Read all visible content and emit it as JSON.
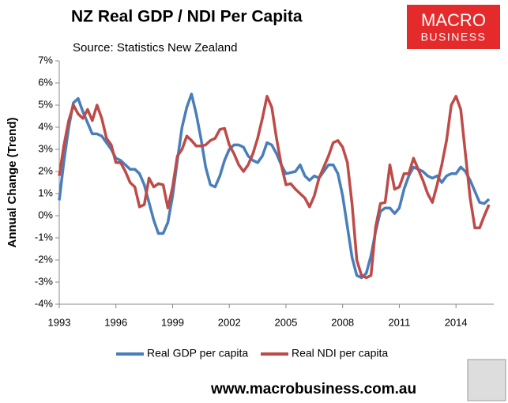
{
  "chart_data": {
    "type": "line",
    "title": "NZ Real GDP / NDI Per Capita",
    "subtitle": "Source: Statistics New Zealand",
    "y_label": "Annual Change (Trend)",
    "logo": {
      "line1": "MACRO",
      "line2": "BUSINESS"
    },
    "footer": "www.macrobusiness.com.au",
    "x": [
      1993,
      1993.25,
      1993.5,
      1993.75,
      1994,
      1994.25,
      1994.5,
      1994.75,
      1995,
      1995.25,
      1995.5,
      1995.75,
      1996,
      1996.25,
      1996.5,
      1996.75,
      1997,
      1997.25,
      1997.5,
      1997.75,
      1998,
      1998.25,
      1998.5,
      1998.75,
      1999,
      1999.25,
      1999.5,
      1999.75,
      2000,
      2000.25,
      2000.5,
      2000.75,
      2001,
      2001.25,
      2001.5,
      2001.75,
      2002,
      2002.25,
      2002.5,
      2002.75,
      2003,
      2003.25,
      2003.5,
      2003.75,
      2004,
      2004.25,
      2004.5,
      2004.75,
      2005,
      2005.25,
      2005.5,
      2005.75,
      2006,
      2006.25,
      2006.5,
      2006.75,
      2007,
      2007.25,
      2007.5,
      2007.75,
      2008,
      2008.25,
      2008.5,
      2008.75,
      2009,
      2009.25,
      2009.5,
      2009.75,
      2010,
      2010.25,
      2010.5,
      2010.75,
      2011,
      2011.25,
      2011.5,
      2011.75,
      2012,
      2012.25,
      2012.5,
      2012.75,
      2013,
      2013.25,
      2013.5,
      2013.75,
      2014,
      2014.25,
      2014.5,
      2014.75,
      2015,
      2015.25,
      2015.5,
      2015.75
    ],
    "series": [
      {
        "name": "Real GDP per capita",
        "color": "#4a7ebb",
        "values": [
          0.7,
          2.5,
          4.0,
          5.1,
          5.3,
          4.7,
          4.2,
          3.7,
          3.7,
          3.6,
          3.3,
          3.0,
          2.6,
          2.5,
          2.3,
          2.1,
          2.1,
          1.9,
          1.4,
          0.6,
          -0.2,
          -0.8,
          -0.8,
          -0.3,
          0.9,
          2.5,
          4.0,
          4.9,
          5.5,
          4.6,
          3.5,
          2.2,
          1.4,
          1.3,
          1.8,
          2.5,
          3.0,
          3.2,
          3.2,
          3.1,
          2.7,
          2.5,
          2.4,
          2.7,
          3.3,
          3.2,
          2.8,
          2.3,
          1.9,
          1.95,
          2.0,
          2.3,
          1.8,
          1.6,
          1.8,
          1.7,
          2.0,
          2.3,
          2.3,
          1.9,
          0.9,
          -0.5,
          -1.9,
          -2.7,
          -2.8,
          -2.6,
          -1.8,
          -0.7,
          0.2,
          0.35,
          0.35,
          0.1,
          0.35,
          1.2,
          1.8,
          2.2,
          2.1,
          2.0,
          1.8,
          1.7,
          1.8,
          1.5,
          1.8,
          1.9,
          1.9,
          2.2,
          2.0,
          1.6,
          1.1,
          0.6,
          0.55,
          0.75
        ]
      },
      {
        "name": "Real NDI per capita",
        "color": "#be4b48",
        "values": [
          1.8,
          3.2,
          4.3,
          5.0,
          4.6,
          4.4,
          4.8,
          4.3,
          5.0,
          4.4,
          3.5,
          3.2,
          2.4,
          2.4,
          2.0,
          1.5,
          1.3,
          0.4,
          0.5,
          1.7,
          1.3,
          1.45,
          1.4,
          0.35,
          1.3,
          2.7,
          3.0,
          3.6,
          3.4,
          3.15,
          3.15,
          3.2,
          3.4,
          3.5,
          3.9,
          3.95,
          3.2,
          2.8,
          2.3,
          2.0,
          2.3,
          2.8,
          3.5,
          4.4,
          5.4,
          4.9,
          3.5,
          2.3,
          1.4,
          1.45,
          1.2,
          1.0,
          0.8,
          0.4,
          0.9,
          1.7,
          2.2,
          2.7,
          3.3,
          3.4,
          3.1,
          2.4,
          0.5,
          -2.0,
          -2.7,
          -2.8,
          -2.7,
          -0.5,
          0.55,
          0.6,
          2.3,
          1.2,
          1.3,
          1.9,
          1.9,
          2.6,
          2.1,
          1.6,
          1.0,
          0.6,
          1.4,
          2.3,
          3.4,
          5.0,
          5.4,
          4.8,
          2.8,
          0.8,
          -0.55,
          -0.55,
          0.0,
          0.5
        ]
      }
    ],
    "xlim": [
      1993,
      2016
    ],
    "xticks": [
      1993,
      1996,
      1999,
      2002,
      2005,
      2008,
      2011,
      2014
    ],
    "ylim": [
      -4,
      7
    ],
    "yticks": [
      {
        "value": -4,
        "label": "-4%"
      },
      {
        "value": -3,
        "label": "-3%"
      },
      {
        "value": -2,
        "label": "-2%"
      },
      {
        "value": -1,
        "label": "-1%"
      },
      {
        "value": 0,
        "label": "0%"
      },
      {
        "value": 1,
        "label": "1%"
      },
      {
        "value": 2,
        "label": "2%"
      },
      {
        "value": 3,
        "label": "3%"
      },
      {
        "value": 4,
        "label": "4%"
      },
      {
        "value": 5,
        "label": "5%"
      },
      {
        "value": 6,
        "label": "6%"
      },
      {
        "value": 7,
        "label": "7%"
      }
    ],
    "grid": false
  }
}
